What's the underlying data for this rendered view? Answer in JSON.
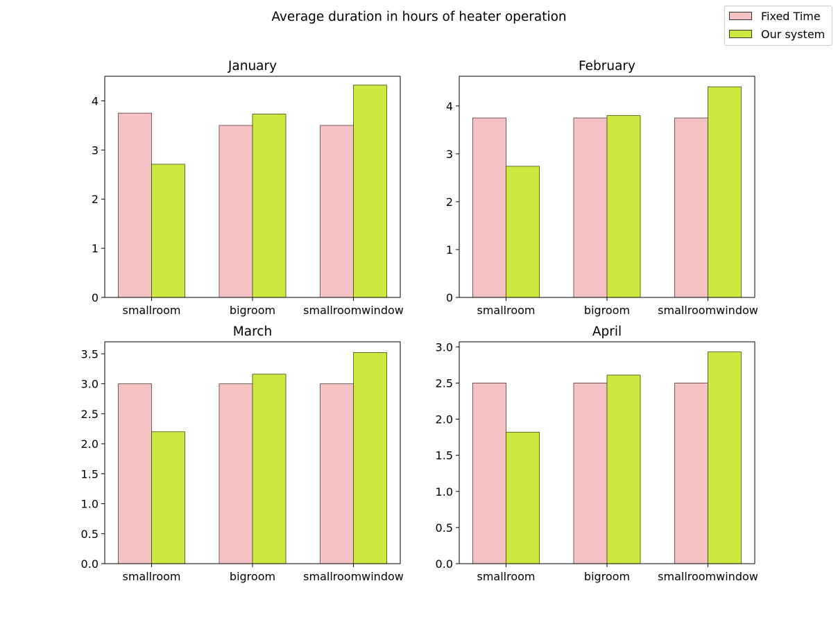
{
  "figure_title": "Average duration in hours of heater operation",
  "legend": [
    {
      "label": "Fixed Time",
      "color": "#f4c2c2"
    },
    {
      "label": "Our system",
      "color": "#cfe840"
    }
  ],
  "chart_data": [
    {
      "type": "bar",
      "title": "January",
      "categories": [
        "smallroom",
        "bigroom",
        "smallroomwindow"
      ],
      "series": [
        {
          "name": "Fixed Time",
          "values": [
            3.75,
            3.5,
            3.5
          ]
        },
        {
          "name": "Our system",
          "values": [
            2.71,
            3.73,
            4.32
          ]
        }
      ],
      "ylim": [
        0,
        4.5
      ],
      "yticks": [
        0,
        1,
        2,
        3,
        4
      ],
      "ytick_labels": [
        "0",
        "1",
        "2",
        "3",
        "4"
      ]
    },
    {
      "type": "bar",
      "title": "February",
      "categories": [
        "smallroom",
        "bigroom",
        "smallroomwindow"
      ],
      "series": [
        {
          "name": "Fixed Time",
          "values": [
            3.75,
            3.75,
            3.75
          ]
        },
        {
          "name": "Our system",
          "values": [
            2.74,
            3.8,
            4.4
          ]
        }
      ],
      "ylim": [
        0,
        4.62
      ],
      "yticks": [
        0,
        1,
        2,
        3,
        4
      ],
      "ytick_labels": [
        "0",
        "1",
        "2",
        "3",
        "4"
      ]
    },
    {
      "type": "bar",
      "title": "March",
      "categories": [
        "smallroom",
        "bigroom",
        "smallroomwindow"
      ],
      "series": [
        {
          "name": "Fixed Time",
          "values": [
            3.0,
            3.0,
            3.0
          ]
        },
        {
          "name": "Our system",
          "values": [
            2.2,
            3.16,
            3.52
          ]
        }
      ],
      "ylim": [
        0,
        3.7
      ],
      "yticks": [
        0,
        0.5,
        1.0,
        1.5,
        2.0,
        2.5,
        3.0,
        3.5
      ],
      "ytick_labels": [
        "0.0",
        "0.5",
        "1.0",
        "1.5",
        "2.0",
        "2.5",
        "3.0",
        "3.5"
      ]
    },
    {
      "type": "bar",
      "title": "April",
      "categories": [
        "smallroom",
        "bigroom",
        "smallroomwindow"
      ],
      "series": [
        {
          "name": "Fixed Time",
          "values": [
            2.5,
            2.5,
            2.5
          ]
        },
        {
          "name": "Our system",
          "values": [
            1.82,
            2.61,
            2.93
          ]
        }
      ],
      "ylim": [
        0,
        3.07
      ],
      "yticks": [
        0,
        0.5,
        1.0,
        1.5,
        2.0,
        2.5,
        3.0
      ],
      "ytick_labels": [
        "0.0",
        "0.5",
        "1.0",
        "1.5",
        "2.0",
        "2.5",
        "3.0"
      ]
    }
  ]
}
